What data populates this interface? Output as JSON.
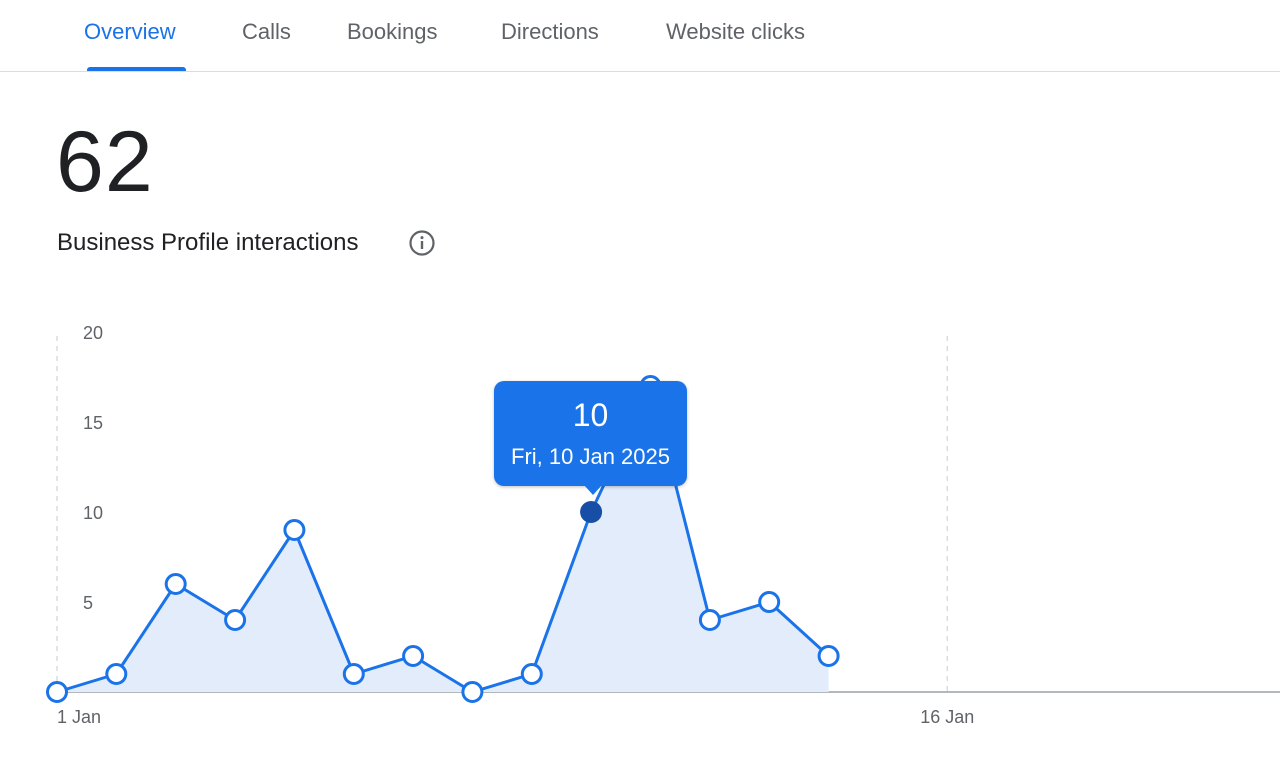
{
  "tabs": [
    {
      "label": "Overview",
      "active": true
    },
    {
      "label": "Calls",
      "active": false
    },
    {
      "label": "Bookings",
      "active": false
    },
    {
      "label": "Directions",
      "active": false
    },
    {
      "label": "Website clicks",
      "active": false
    }
  ],
  "summary": {
    "total": "62",
    "label": "Business Profile interactions",
    "info_icon": "info-icon"
  },
  "tooltip": {
    "value": "10",
    "date": "Fri, 10 Jan 2025"
  },
  "colors": {
    "accent": "#1a73e8",
    "fill": "#e3ecfa",
    "selected_point": "#174ea6",
    "tab_inactive": "#5f6368"
  },
  "chart_data": {
    "type": "area",
    "x": [
      "1 Jan",
      "2 Jan",
      "3 Jan",
      "4 Jan",
      "5 Jan",
      "6 Jan",
      "7 Jan",
      "8 Jan",
      "9 Jan",
      "10 Jan",
      "11 Jan",
      "12 Jan",
      "13 Jan",
      "14 Jan"
    ],
    "values": [
      0,
      1,
      6,
      4,
      9,
      1,
      2,
      0,
      1,
      10,
      17,
      4,
      5,
      2
    ],
    "x_domain_days": [
      1,
      31
    ],
    "x_ticks": [
      {
        "day": 1,
        "label": "1 Jan"
      },
      {
        "day": 16,
        "label": "16 Jan"
      }
    ],
    "y_ticks": [
      5,
      10,
      15,
      20
    ],
    "ylim": [
      0,
      20
    ],
    "highlighted_index": 9,
    "grid": "dashed vertical lines at 1 Jan and 16 Jan"
  }
}
